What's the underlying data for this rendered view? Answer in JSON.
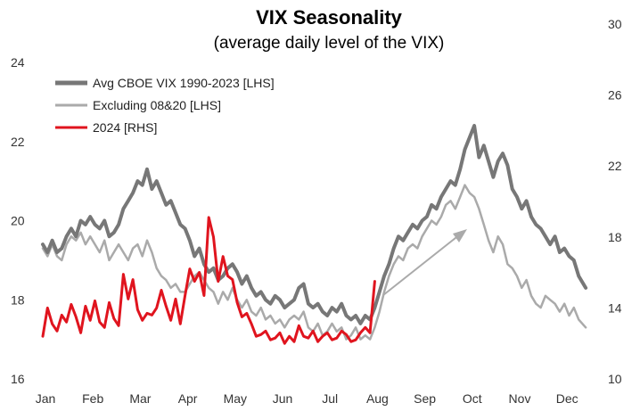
{
  "chart_data": {
    "type": "line",
    "title": "VIX Seasonality",
    "subtitle": "(average daily level of the VIX)",
    "x_categories": [
      "Jan",
      "Feb",
      "Mar",
      "Apr",
      "May",
      "Jun",
      "Jul",
      "Aug",
      "Sep",
      "Oct",
      "Nov",
      "Dec"
    ],
    "y_left": {
      "range": [
        16,
        24
      ],
      "ticks": [
        "16",
        "18",
        "20",
        "22",
        "24"
      ]
    },
    "y_right": {
      "range": [
        10,
        30
      ],
      "ticks": [
        "10",
        "14",
        "18",
        "22",
        "26",
        "30"
      ]
    },
    "grid": false,
    "legend_position": "top-left",
    "series": [
      {
        "name": "Avg CBOE VIX 1990-2023 [LHS]",
        "axis": "left",
        "color": "#777777",
        "x": [
          0.0,
          0.1,
          0.2,
          0.3,
          0.4,
          0.5,
          0.6,
          0.7,
          0.8,
          0.9,
          1.0,
          1.1,
          1.2,
          1.3,
          1.4,
          1.5,
          1.6,
          1.7,
          1.8,
          1.9,
          2.0,
          2.1,
          2.2,
          2.3,
          2.4,
          2.5,
          2.6,
          2.7,
          2.8,
          2.9,
          3.0,
          3.1,
          3.2,
          3.3,
          3.4,
          3.5,
          3.6,
          3.7,
          3.8,
          3.9,
          4.0,
          4.1,
          4.2,
          4.3,
          4.4,
          4.5,
          4.6,
          4.7,
          4.8,
          4.9,
          5.0,
          5.1,
          5.2,
          5.3,
          5.4,
          5.5,
          5.6,
          5.7,
          5.8,
          5.9,
          6.0,
          6.1,
          6.2,
          6.3,
          6.4,
          6.5,
          6.6,
          6.7,
          6.8,
          6.9,
          7.0,
          7.1,
          7.2,
          7.3,
          7.4,
          7.5,
          7.6,
          7.7,
          7.8,
          7.9,
          8.0,
          8.1,
          8.2,
          8.3,
          8.4,
          8.5,
          8.6,
          8.7,
          8.8,
          8.9,
          9.0,
          9.1,
          9.2,
          9.3,
          9.4,
          9.5,
          9.6,
          9.7,
          9.8,
          9.9,
          10.0,
          10.1,
          10.2,
          10.3,
          10.4,
          10.5,
          10.6,
          10.7,
          10.8,
          10.9,
          11.0,
          11.1,
          11.2,
          11.3,
          11.45
        ],
        "values": [
          19.4,
          19.2,
          19.5,
          19.2,
          19.3,
          19.6,
          19.8,
          19.6,
          20.0,
          19.9,
          20.1,
          19.9,
          19.8,
          20.0,
          19.6,
          19.7,
          19.9,
          20.3,
          20.5,
          20.7,
          21.0,
          20.9,
          21.3,
          20.8,
          21.0,
          20.7,
          20.4,
          20.5,
          20.2,
          19.9,
          19.8,
          19.5,
          19.1,
          19.3,
          18.9,
          18.7,
          18.8,
          18.5,
          18.6,
          18.8,
          18.9,
          18.7,
          18.4,
          18.6,
          18.3,
          18.1,
          18.2,
          18.0,
          17.9,
          18.1,
          18.0,
          17.8,
          17.9,
          18.0,
          18.3,
          18.4,
          17.9,
          17.8,
          17.9,
          17.7,
          17.6,
          17.8,
          17.7,
          17.9,
          17.6,
          17.5,
          17.6,
          17.4,
          17.6,
          17.5,
          17.8,
          18.2,
          18.6,
          18.9,
          19.3,
          19.6,
          19.5,
          19.7,
          19.9,
          19.8,
          20.0,
          20.1,
          20.4,
          20.3,
          20.6,
          20.8,
          21.0,
          20.9,
          21.3,
          21.8,
          22.1,
          22.4,
          21.6,
          21.9,
          21.5,
          21.1,
          21.5,
          21.7,
          21.4,
          20.8,
          20.6,
          20.3,
          20.5,
          20.1,
          19.9,
          19.8,
          19.6,
          19.4,
          19.6,
          19.2,
          19.3,
          19.1,
          19.0,
          18.6,
          18.3
        ]
      },
      {
        "name": "Excluding 08&20 [LHS]",
        "axis": "left",
        "color": "#aaaaaa",
        "x": [
          0.0,
          0.1,
          0.2,
          0.3,
          0.4,
          0.5,
          0.6,
          0.7,
          0.8,
          0.9,
          1.0,
          1.1,
          1.2,
          1.3,
          1.4,
          1.5,
          1.6,
          1.7,
          1.8,
          1.9,
          2.0,
          2.1,
          2.2,
          2.3,
          2.4,
          2.5,
          2.6,
          2.7,
          2.8,
          2.9,
          3.0,
          3.1,
          3.2,
          3.3,
          3.4,
          3.5,
          3.6,
          3.7,
          3.8,
          3.9,
          4.0,
          4.1,
          4.2,
          4.3,
          4.4,
          4.5,
          4.6,
          4.7,
          4.8,
          4.9,
          5.0,
          5.1,
          5.2,
          5.3,
          5.4,
          5.5,
          5.6,
          5.7,
          5.8,
          5.9,
          6.0,
          6.1,
          6.2,
          6.3,
          6.4,
          6.5,
          6.6,
          6.7,
          6.8,
          6.9,
          7.0,
          7.1,
          7.2,
          7.3,
          7.4,
          7.5,
          7.6,
          7.7,
          7.8,
          7.9,
          8.0,
          8.1,
          8.2,
          8.3,
          8.4,
          8.5,
          8.6,
          8.7,
          8.8,
          8.9,
          9.0,
          9.1,
          9.2,
          9.3,
          9.4,
          9.5,
          9.6,
          9.7,
          9.8,
          9.9,
          10.0,
          10.1,
          10.2,
          10.3,
          10.4,
          10.5,
          10.6,
          10.7,
          10.8,
          10.9,
          11.0,
          11.1,
          11.2,
          11.3,
          11.45
        ],
        "values": [
          19.3,
          19.1,
          19.4,
          19.1,
          19.0,
          19.4,
          19.6,
          19.5,
          19.7,
          19.4,
          19.6,
          19.4,
          19.2,
          19.5,
          19.0,
          19.2,
          19.4,
          19.2,
          19.0,
          19.3,
          19.4,
          19.1,
          19.5,
          19.2,
          18.8,
          18.6,
          18.5,
          18.3,
          18.4,
          18.2,
          18.2,
          18.4,
          18.6,
          18.7,
          18.5,
          18.3,
          18.2,
          17.9,
          18.2,
          18.0,
          18.3,
          18.0,
          17.8,
          18.0,
          17.7,
          17.6,
          17.8,
          17.5,
          17.6,
          17.4,
          17.5,
          17.3,
          17.5,
          17.6,
          17.5,
          17.7,
          17.3,
          17.2,
          17.4,
          17.1,
          17.2,
          17.4,
          17.2,
          17.3,
          17.0,
          17.1,
          17.3,
          17.0,
          17.1,
          17.0,
          17.3,
          17.7,
          18.2,
          18.6,
          18.9,
          19.1,
          19.0,
          19.3,
          19.4,
          19.3,
          19.6,
          19.8,
          20.0,
          19.9,
          20.1,
          20.4,
          20.5,
          20.3,
          20.6,
          20.9,
          20.7,
          20.6,
          20.3,
          19.9,
          19.5,
          19.2,
          19.6,
          19.4,
          18.9,
          18.8,
          18.6,
          18.3,
          18.5,
          18.1,
          17.9,
          17.8,
          18.1,
          18.0,
          17.9,
          17.7,
          17.9,
          17.6,
          17.8,
          17.5,
          17.3
        ]
      },
      {
        "name": "2024 [RHS]",
        "axis": "right",
        "color": "#e0141e",
        "x": [
          0.0,
          0.1,
          0.2,
          0.3,
          0.4,
          0.5,
          0.6,
          0.7,
          0.8,
          0.9,
          1.0,
          1.1,
          1.2,
          1.3,
          1.4,
          1.5,
          1.6,
          1.7,
          1.8,
          1.9,
          2.0,
          2.1,
          2.2,
          2.3,
          2.4,
          2.5,
          2.6,
          2.7,
          2.8,
          2.9,
          3.0,
          3.1,
          3.2,
          3.3,
          3.4,
          3.5,
          3.6,
          3.7,
          3.8,
          3.9,
          4.0,
          4.1,
          4.2,
          4.3,
          4.4,
          4.5,
          4.6,
          4.7,
          4.8,
          4.9,
          5.0,
          5.1,
          5.2,
          5.3,
          5.4,
          5.5,
          5.6,
          5.7,
          5.8,
          5.9,
          6.0,
          6.1,
          6.2,
          6.3,
          6.4,
          6.5,
          6.6,
          6.7,
          6.8,
          6.9,
          7.0
        ],
        "values": [
          12.4,
          14.0,
          13.1,
          12.7,
          13.6,
          13.2,
          14.2,
          13.5,
          12.6,
          14.1,
          13.3,
          14.4,
          13.2,
          12.9,
          14.3,
          13.4,
          13.0,
          15.9,
          14.5,
          15.6,
          13.9,
          13.3,
          13.7,
          13.6,
          14.0,
          15.0,
          14.1,
          13.3,
          14.5,
          13.1,
          14.7,
          16.2,
          15.5,
          16.0,
          14.7,
          19.1,
          18.0,
          15.5,
          16.9,
          15.8,
          15.6,
          14.3,
          13.5,
          13.7,
          13.1,
          12.4,
          12.5,
          12.7,
          12.2,
          12.3,
          12.6,
          12.0,
          12.4,
          12.1,
          13.0,
          12.4,
          12.3,
          12.7,
          12.1,
          12.4,
          12.6,
          12.2,
          12.3,
          12.7,
          12.5,
          12.1,
          12.2,
          12.6,
          12.9,
          12.6,
          15.5
        ]
      }
    ],
    "annotation": {
      "type": "arrow",
      "direction": "up-right",
      "color": "#aaaaaa"
    }
  }
}
